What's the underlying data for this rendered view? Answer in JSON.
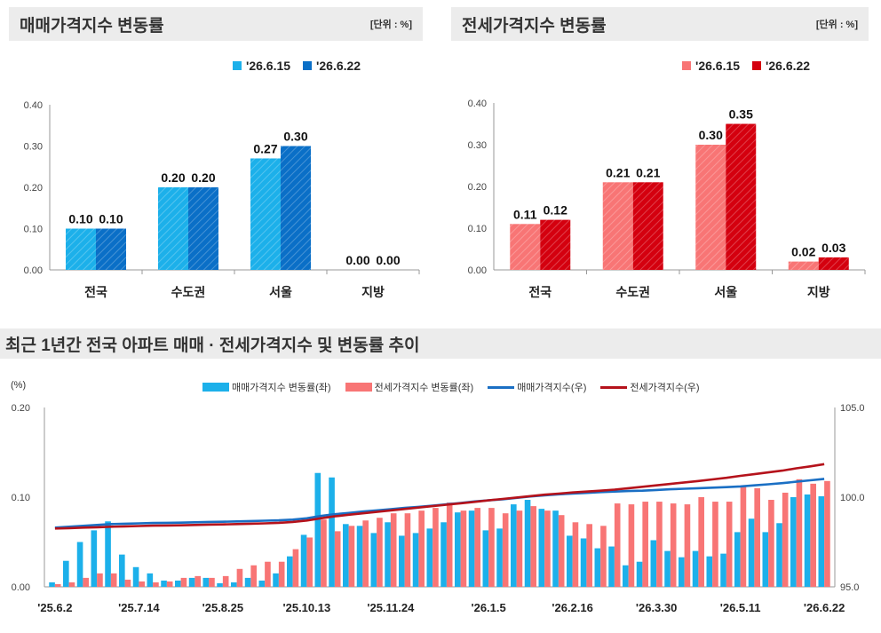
{
  "left_panel": {
    "title": "매매가격지수 변동률",
    "unit": "[단위 : %]",
    "legend": [
      "'26.6.15",
      "'26.6.22"
    ],
    "colors": [
      "#1cb0ea",
      "#0a6fc7"
    ]
  },
  "right_panel": {
    "title": "전세가격지수 변동률",
    "unit": "[단위 : %]",
    "legend": [
      "'26.6.15",
      "'26.6.22"
    ],
    "colors": [
      "#f87575",
      "#d4000f"
    ]
  },
  "bottom_panel": {
    "title": "최근 1년간 전국 아파트 매매 · 전세가격지수 및 변동률 추이",
    "left_unit": "(%)",
    "legend": [
      "매매가격지수 변동률(좌)",
      "전세가격지수 변동률(좌)",
      "매매가격지수(우)",
      "전세가격지수(우)"
    ],
    "colors": [
      "#1cb0ea",
      "#f87575",
      "#1a6fc4",
      "#b5121b"
    ]
  },
  "chart_data": [
    {
      "type": "bar",
      "title": "매매가격지수 변동률",
      "categories": [
        "전국",
        "수도권",
        "서울",
        "지방"
      ],
      "series": [
        {
          "name": "'26.6.15",
          "values": [
            0.1,
            0.2,
            0.27,
            0.0
          ],
          "labels": [
            "0.10",
            "0.20",
            "0.27",
            "0.00"
          ]
        },
        {
          "name": "'26.6.22",
          "values": [
            0.1,
            0.2,
            0.3,
            0.0
          ],
          "labels": [
            "0.10",
            "0.20",
            "0.30",
            "0.00"
          ]
        }
      ],
      "ylim": [
        0,
        0.4
      ],
      "yticks": [
        "0.00",
        "0.10",
        "0.20",
        "0.30",
        "0.40"
      ],
      "legend_position": "top-right"
    },
    {
      "type": "bar",
      "title": "전세가격지수 변동률",
      "categories": [
        "전국",
        "수도권",
        "서울",
        "지방"
      ],
      "series": [
        {
          "name": "'26.6.15",
          "values": [
            0.11,
            0.21,
            0.3,
            0.02
          ],
          "labels": [
            "0.11",
            "0.21",
            "0.30",
            "0.02"
          ]
        },
        {
          "name": "'26.6.22",
          "values": [
            0.12,
            0.21,
            0.35,
            0.03
          ],
          "labels": [
            "0.12",
            "0.21",
            "0.35",
            "0.03"
          ]
        }
      ],
      "ylim": [
        0,
        0.4
      ],
      "yticks": [
        "0.00",
        "0.10",
        "0.20",
        "0.30",
        "0.40"
      ],
      "legend_position": "top-right"
    },
    {
      "type": "bar",
      "title": "최근 1년간 전국 아파트 매매 · 전세가격지수 및 변동률 추이",
      "x_tick_labels": [
        "'25.6.2",
        "'25.7.14",
        "'25.8.25",
        "'25.10.13",
        "'25.11.24",
        "'26.1.5",
        "'26.2.16",
        "'26.3.30",
        "'26.5.11",
        "'26.6.22"
      ],
      "ylim_left": [
        0,
        0.2
      ],
      "yticks_left": [
        "0.00",
        "0.10",
        "0.20"
      ],
      "ylim_right": [
        95,
        105
      ],
      "yticks_right": [
        "95.0",
        "100.0",
        "105.0"
      ],
      "series": [
        {
          "name": "매매가격지수 변동률(좌)",
          "type": "bar",
          "axis": "left",
          "values": [
            0.005,
            0.029,
            0.05,
            0.063,
            0.073,
            0.036,
            0.022,
            0.015,
            0.007,
            0.007,
            0.01,
            0.01,
            0.004,
            0.005,
            0.01,
            0.007,
            0.015,
            0.034,
            0.058,
            0.127,
            0.122,
            0.07,
            0.068,
            0.06,
            0.072,
            0.057,
            0.06,
            0.065,
            0.072,
            0.083,
            0.085,
            0.063,
            0.065,
            0.092,
            0.097,
            0.087,
            0.085,
            0.057,
            0.054,
            0.043,
            0.045,
            0.024,
            0.028,
            0.052,
            0.04,
            0.033,
            0.04,
            0.034,
            0.037,
            0.061,
            0.076,
            0.061,
            0.071,
            0.1,
            0.103,
            0.101
          ]
        },
        {
          "name": "전세가격지수 변동률(좌)",
          "type": "bar",
          "axis": "left",
          "values": [
            0.003,
            0.005,
            0.01,
            0.015,
            0.015,
            0.008,
            0.006,
            0.005,
            0.006,
            0.01,
            0.012,
            0.01,
            0.012,
            0.02,
            0.024,
            0.028,
            0.028,
            0.042,
            0.055,
            0.075,
            0.062,
            0.068,
            0.074,
            0.077,
            0.082,
            0.082,
            0.085,
            0.088,
            0.094,
            0.085,
            0.088,
            0.088,
            0.082,
            0.085,
            0.09,
            0.085,
            0.08,
            0.072,
            0.07,
            0.068,
            0.093,
            0.092,
            0.095,
            0.095,
            0.093,
            0.092,
            0.1,
            0.095,
            0.095,
            0.112,
            0.11,
            0.097,
            0.105,
            0.12,
            0.115,
            0.118
          ]
        },
        {
          "name": "매매가격지수(우)",
          "type": "line",
          "axis": "right",
          "values": [
            98.3,
            98.35,
            98.4,
            98.45,
            98.5,
            98.52,
            98.54,
            98.56,
            98.57,
            98.58,
            98.6,
            98.62,
            98.63,
            98.65,
            98.67,
            98.69,
            98.71,
            98.75,
            98.82,
            98.95,
            99.05,
            99.12,
            99.2,
            99.26,
            99.33,
            99.4,
            99.46,
            99.53,
            99.6,
            99.68,
            99.76,
            99.82,
            99.88,
            99.96,
            100.04,
            100.1,
            100.16,
            100.2,
            100.24,
            100.28,
            100.31,
            100.34,
            100.36,
            100.4,
            100.44,
            100.47,
            100.5,
            100.53,
            100.56,
            100.6,
            100.66,
            100.72,
            100.78,
            100.86,
            100.94,
            101.02
          ]
        },
        {
          "name": "전세가격지수(우)",
          "type": "line",
          "axis": "right",
          "values": [
            98.25,
            98.27,
            98.3,
            98.32,
            98.35,
            98.37,
            98.39,
            98.41,
            98.42,
            98.43,
            98.45,
            98.47,
            98.48,
            98.5,
            98.52,
            98.54,
            98.57,
            98.62,
            98.7,
            98.82,
            98.93,
            99.02,
            99.1,
            99.18,
            99.26,
            99.34,
            99.42,
            99.5,
            99.58,
            99.66,
            99.74,
            99.82,
            99.9,
            99.98,
            100.06,
            100.14,
            100.2,
            100.26,
            100.31,
            100.36,
            100.42,
            100.5,
            100.58,
            100.66,
            100.74,
            100.82,
            100.9,
            100.99,
            101.08,
            101.19,
            101.28,
            101.38,
            101.48,
            101.61,
            101.72,
            101.84
          ]
        }
      ]
    }
  ]
}
